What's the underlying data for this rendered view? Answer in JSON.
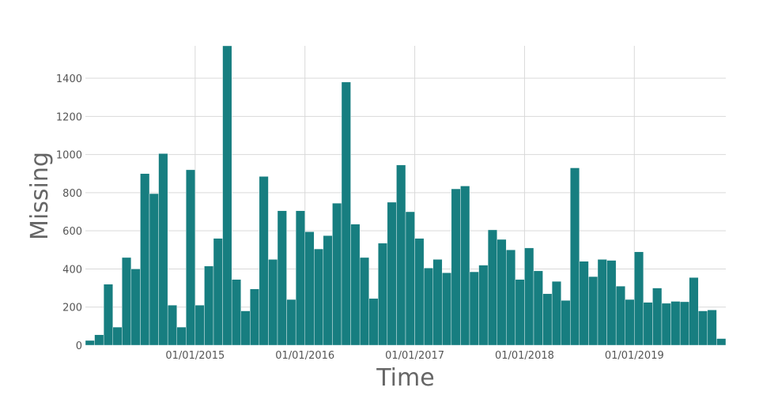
{
  "colors": {
    "bar": "#177e80",
    "grid": "#d9d9d9",
    "text": "#555555"
  },
  "chart_data": {
    "type": "bar",
    "title": "",
    "xlabel": "Time",
    "ylabel": "Missing",
    "ylim": [
      0,
      1570
    ],
    "grid": true,
    "x_tick_labels": [
      "01/01/2015",
      "01/01/2016",
      "01/01/2017",
      "01/01/2018",
      "01/01/2019"
    ],
    "y_ticks": [
      0,
      200,
      400,
      600,
      800,
      1000,
      1200,
      1400
    ],
    "categories": [
      "2014-01",
      "2014-02",
      "2014-03",
      "2014-04",
      "2014-05",
      "2014-06",
      "2014-07",
      "2014-08",
      "2014-09",
      "2014-10",
      "2014-11",
      "2014-12",
      "2015-01",
      "2015-02",
      "2015-03",
      "2015-04",
      "2015-05",
      "2015-06",
      "2015-07",
      "2015-08",
      "2015-09",
      "2015-10",
      "2015-11",
      "2015-12",
      "2016-01",
      "2016-02",
      "2016-03",
      "2016-04",
      "2016-05",
      "2016-06",
      "2016-07",
      "2016-08",
      "2016-09",
      "2016-10",
      "2016-11",
      "2016-12",
      "2017-01",
      "2017-02",
      "2017-03",
      "2017-04",
      "2017-05",
      "2017-06",
      "2017-07",
      "2017-08",
      "2017-09",
      "2017-10",
      "2017-11",
      "2017-12",
      "2018-01",
      "2018-02",
      "2018-03",
      "2018-04",
      "2018-05",
      "2018-06",
      "2018-07",
      "2018-08",
      "2018-09",
      "2018-10",
      "2018-11",
      "2018-12",
      "2019-01",
      "2019-02",
      "2019-03",
      "2019-04",
      "2019-05",
      "2019-06",
      "2019-07",
      "2019-08",
      "2019-09",
      "2019-10"
    ],
    "values": [
      25,
      55,
      320,
      95,
      460,
      400,
      900,
      795,
      1005,
      210,
      95,
      920,
      210,
      415,
      560,
      1580,
      345,
      180,
      295,
      885,
      450,
      705,
      240,
      705,
      595,
      505,
      575,
      745,
      1380,
      635,
      460,
      245,
      535,
      750,
      945,
      700,
      560,
      405,
      450,
      380,
      820,
      835,
      385,
      420,
      605,
      555,
      500,
      345,
      510,
      390,
      270,
      335,
      235,
      930,
      440,
      360,
      450,
      445,
      310,
      240,
      490,
      225,
      300,
      220,
      230,
      228,
      355,
      180,
      185,
      35
    ]
  }
}
